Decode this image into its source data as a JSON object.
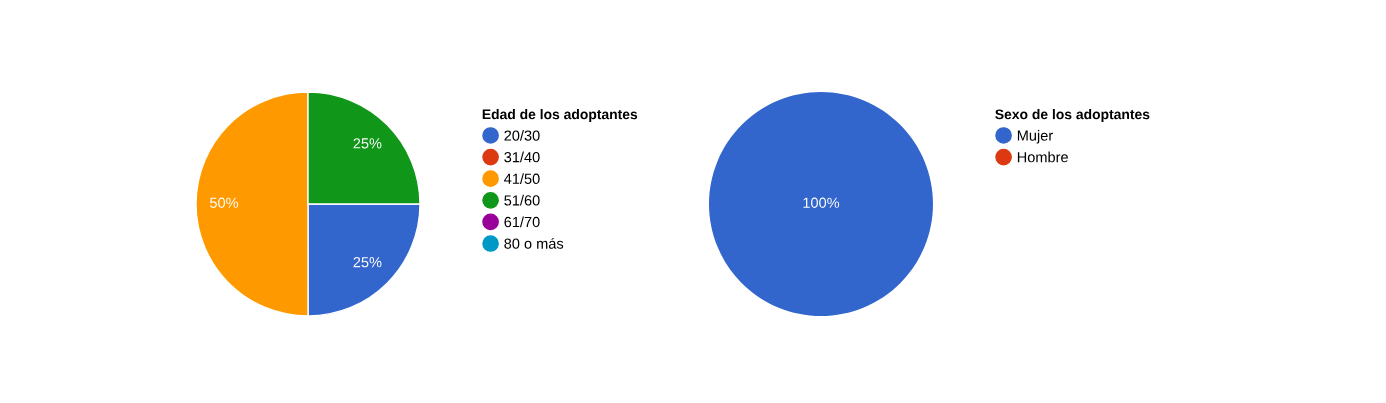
{
  "chart_data": [
    {
      "type": "pie",
      "legend_title": "Edad de los adoptantes",
      "categories": [
        "20/30",
        "31/40",
        "41/50",
        "51/60",
        "61/70",
        "80 o más"
      ],
      "values": [
        25,
        0,
        50,
        25,
        0,
        0
      ],
      "colors": [
        "#3366cc",
        "#dc3912",
        "#ff9900",
        "#109618",
        "#990099",
        "#0099c6"
      ],
      "value_labels": [
        "25%",
        null,
        "50%",
        "25%",
        null,
        null
      ],
      "legend": "right"
    },
    {
      "type": "pie",
      "legend_title": "Sexo de los adoptantes",
      "categories": [
        "Mujer",
        "Hombre"
      ],
      "values": [
        100,
        0
      ],
      "colors": [
        "#3366cc",
        "#dc3912"
      ],
      "value_labels": [
        "100%",
        null
      ],
      "legend": "right"
    }
  ]
}
